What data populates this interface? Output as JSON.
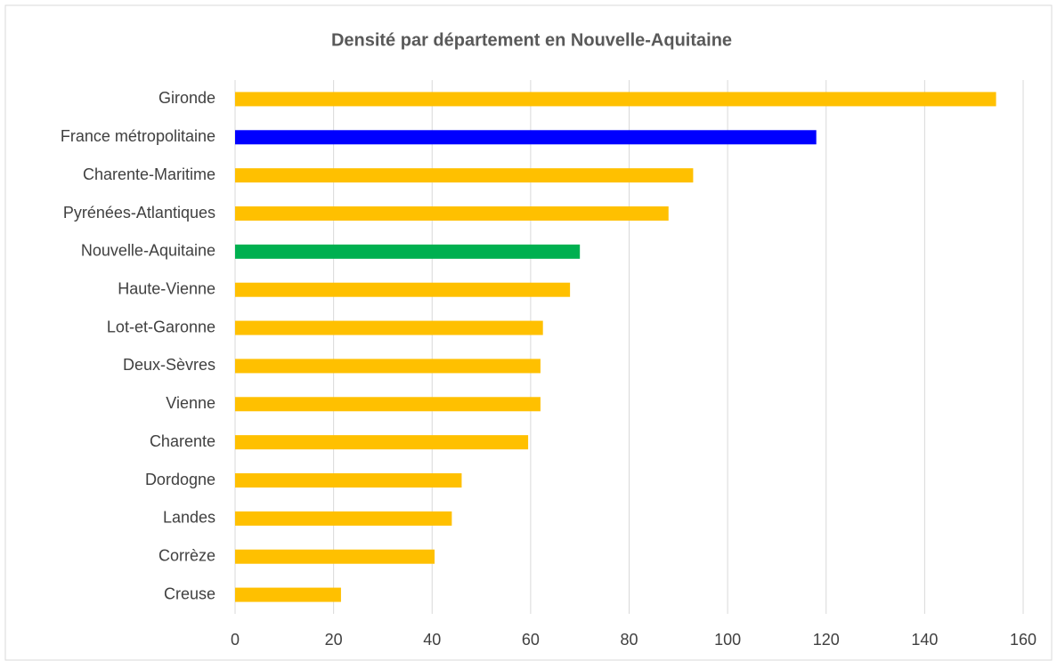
{
  "chart_data": {
    "type": "barh",
    "title": "Densité par département en Nouvelle-Aquitaine",
    "categories": [
      "Gironde",
      "France métropolitaine",
      "Charente-Maritime",
      "Pyrénées-Atlantiques",
      "Nouvelle-Aquitaine",
      "Haute-Vienne",
      "Lot-et-Garonne",
      "Deux-Sèvres",
      "Vienne",
      "Charente",
      "Dordogne",
      "Landes",
      "Corrèze",
      "Creuse"
    ],
    "values": [
      154.5,
      118,
      93,
      88,
      70,
      68,
      62.5,
      62,
      62,
      59.5,
      46,
      44,
      40.5,
      21.5
    ],
    "colors": [
      "#ffc000",
      "#0000ff",
      "#ffc000",
      "#ffc000",
      "#00b050",
      "#ffc000",
      "#ffc000",
      "#ffc000",
      "#ffc000",
      "#ffc000",
      "#ffc000",
      "#ffc000",
      "#ffc000",
      "#ffc000"
    ],
    "xlim": [
      0,
      160
    ],
    "xticks": [
      0,
      20,
      40,
      60,
      80,
      100,
      120,
      140,
      160
    ],
    "grid": true
  }
}
